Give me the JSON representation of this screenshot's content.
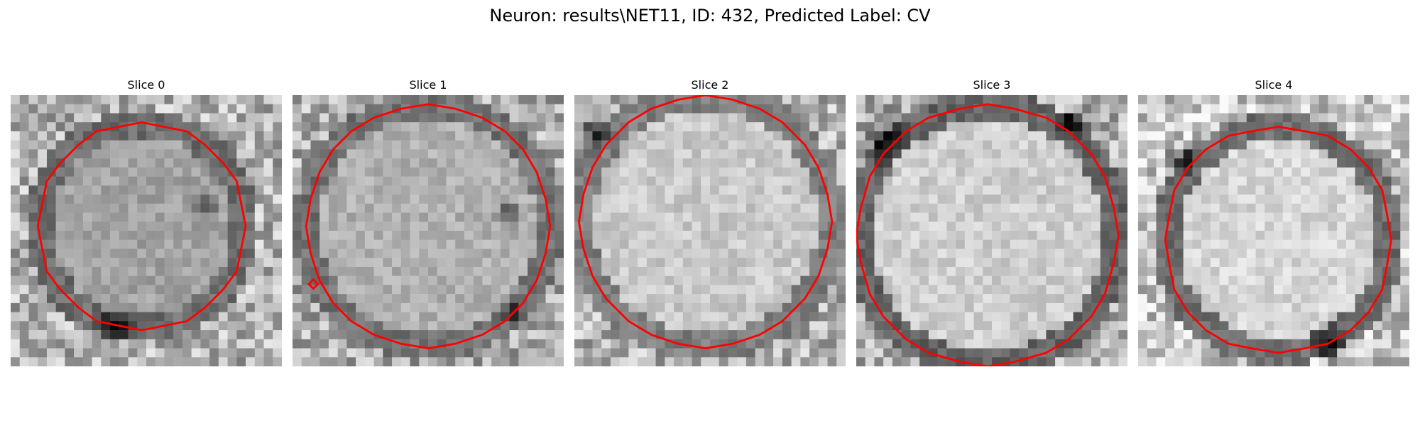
{
  "figure": {
    "title": "Neuron: results\\NET11, ID: 432, Predicted Label: CV"
  },
  "colors": {
    "contour": "#ff0000",
    "background": "#ffffff"
  },
  "panels": [
    {
      "title": "Slice 0"
    },
    {
      "title": "Slice 1"
    },
    {
      "title": "Slice 2"
    },
    {
      "title": "Slice 3"
    },
    {
      "title": "Slice 4"
    }
  ]
}
